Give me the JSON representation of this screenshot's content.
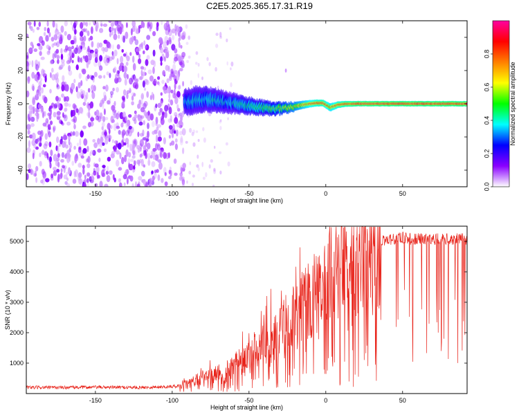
{
  "title": "C2E5.2025.365.17.31.R19",
  "chart_data": [
    {
      "type": "heatmap",
      "name": "spectrogram",
      "xlabel": "Height of straight line (km)",
      "ylabel": "Frequency (Hz)",
      "xlim": [
        -195,
        92
      ],
      "ylim": [
        -50,
        50
      ],
      "x_ticks": [
        -150,
        -100,
        -50,
        0,
        50
      ],
      "y_ticks": [
        -40,
        -20,
        0,
        20,
        40
      ],
      "colorbar": {
        "label": "Normalized spectral amplitude",
        "range": [
          0,
          1
        ],
        "ticks": [
          0.0,
          0.2,
          0.4,
          0.6,
          0.8
        ],
        "tick_labels": [
          "0.0",
          "0.2",
          "0.4",
          "0.6",
          "0.8"
        ],
        "colors": [
          "#ffffff",
          "#8a00ff",
          "#0000ff",
          "#00ffff",
          "#00ff00",
          "#ffff00",
          "#ff8000",
          "#ff0000",
          "#ff00a0"
        ]
      },
      "noise_region_x": [
        -195,
        -92
      ],
      "signal_track": {
        "x": [
          -92,
          -85,
          -78,
          -70,
          -62,
          -55,
          -48,
          -40,
          -33,
          -26,
          -20,
          -14,
          -8,
          -2,
          3,
          8,
          14,
          20,
          40,
          60,
          80,
          92
        ],
        "freq": [
          1.0,
          2.0,
          2.5,
          1.8,
          0.5,
          -0.5,
          -1.5,
          -2.5,
          -3.2,
          -2.5,
          -1.5,
          -0.5,
          0.3,
          0.5,
          -2.2,
          -0.6,
          0.0,
          0.0,
          0.0,
          0.0,
          0.0,
          0.0
        ],
        "amplitude": [
          0.38,
          0.4,
          0.42,
          0.42,
          0.4,
          0.45,
          0.48,
          0.5,
          0.55,
          0.62,
          0.7,
          0.78,
          0.86,
          0.9,
          0.8,
          0.88,
          0.92,
          0.95,
          0.96,
          0.96,
          0.96,
          0.96
        ],
        "bandwidth": [
          5.5,
          6.0,
          5.5,
          5.0,
          4.5,
          4.0,
          3.5,
          3.2,
          2.8,
          2.4,
          2.0,
          1.8,
          1.6,
          1.5,
          1.8,
          1.5,
          1.3,
          1.2,
          1.2,
          1.2,
          1.2,
          1.2
        ]
      }
    },
    {
      "type": "line",
      "name": "snr",
      "xlabel": "Height of straight line (km)",
      "ylabel": "SNR (10 * v/v)",
      "xlim": [
        -195,
        92
      ],
      "ylim": [
        0,
        5500
      ],
      "x_ticks": [
        -150,
        -100,
        -50,
        0,
        50
      ],
      "y_ticks": [
        1000,
        2000,
        3000,
        4000,
        5000
      ],
      "color": "#e8231a",
      "series": [
        {
          "name": "SNR",
          "x": [
            -195,
            -170,
            -150,
            -120,
            -100,
            -92,
            -85,
            -80,
            -75,
            -70,
            -65,
            -60,
            -55,
            -50,
            -45,
            -40,
            -35,
            -30,
            -25,
            -20,
            -15,
            -10,
            -5,
            0,
            5,
            10,
            15,
            20,
            25,
            30,
            35,
            40,
            45,
            50,
            55,
            60,
            65,
            70,
            75,
            80,
            85,
            92
          ],
          "y": [
            200,
            200,
            210,
            200,
            230,
            280,
            450,
            550,
            600,
            650,
            750,
            900,
            1100,
            1300,
            1500,
            1700,
            1850,
            2100,
            2400,
            2700,
            3000,
            3200,
            3500,
            3700,
            3800,
            4000,
            4200,
            4400,
            4600,
            4800,
            4900,
            5000,
            5000,
            5050,
            5000,
            5000,
            5000,
            5000,
            5000,
            5000,
            5000,
            5000
          ]
        }
      ]
    }
  ]
}
